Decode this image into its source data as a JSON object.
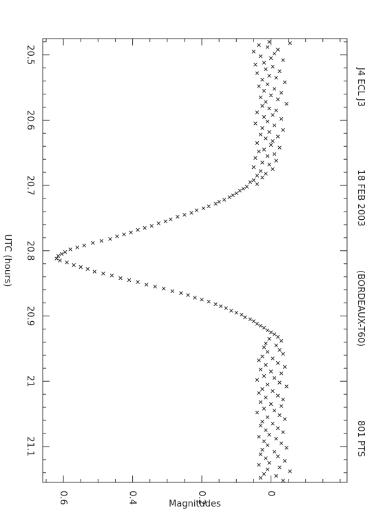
{
  "header": {
    "items": [
      "J4 ECL J3",
      "18 FEB 2003",
      "(BORDEAUX-T60)",
      "801 PTS"
    ]
  },
  "chart_data": {
    "type": "scatter",
    "title": "",
    "xlabel": "UTC (hours)",
    "ylabel": "Magnitudes",
    "xlim": [
      20.475,
      21.155
    ],
    "ylim": [
      -0.22,
      0.66
    ],
    "x_ticks": [
      {
        "value": 20.5,
        "label": "20.5"
      },
      {
        "value": 20.6,
        "label": "20.6"
      },
      {
        "value": 20.7,
        "label": "20.7"
      },
      {
        "value": 20.8,
        "label": "20.8"
      },
      {
        "value": 20.9,
        "label": "20.9"
      },
      {
        "value": 21.0,
        "label": "21"
      },
      {
        "value": 21.1,
        "label": "21.1"
      }
    ],
    "y_ticks": [
      {
        "value": 0,
        "label": "0"
      },
      {
        "value": 0.2,
        "label": "0.2"
      },
      {
        "value": 0.4,
        "label": "0.4"
      },
      {
        "value": 0.6,
        "label": "0.6"
      }
    ],
    "marker": "x",
    "marker_color": "#111111",
    "grid": false,
    "series": [
      {
        "points": [
          [
            20.48,
            0.005
          ],
          [
            20.482,
            -0.055
          ],
          [
            20.485,
            0.035
          ],
          [
            20.488,
            0.01
          ],
          [
            20.492,
            -0.02
          ],
          [
            20.495,
            0.05
          ],
          [
            20.498,
            -0.01
          ],
          [
            20.502,
            0.03
          ],
          [
            20.505,
            0.0
          ],
          [
            20.508,
            -0.035
          ],
          [
            20.512,
            0.02
          ],
          [
            20.515,
            0.045
          ],
          [
            20.518,
            -0.005
          ],
          [
            20.522,
            0.015
          ],
          [
            20.525,
            -0.025
          ],
          [
            20.528,
            0.04
          ],
          [
            20.532,
            0.005
          ],
          [
            20.535,
            -0.015
          ],
          [
            20.538,
            0.025
          ],
          [
            20.542,
            -0.04
          ],
          [
            20.545,
            0.01
          ],
          [
            20.548,
            0.035
          ],
          [
            20.552,
            -0.01
          ],
          [
            20.555,
            0.02
          ],
          [
            20.558,
            -0.03
          ],
          [
            20.562,
            0.0
          ],
          [
            20.565,
            0.03
          ],
          [
            20.568,
            -0.02
          ],
          [
            20.572,
            0.015
          ],
          [
            20.575,
            -0.045
          ],
          [
            20.578,
            0.025
          ],
          [
            20.582,
            0.005
          ],
          [
            20.585,
            -0.015
          ],
          [
            20.588,
            0.04
          ],
          [
            20.592,
            -0.005
          ],
          [
            20.595,
            0.02
          ],
          [
            20.598,
            -0.03
          ],
          [
            20.602,
            0.01
          ],
          [
            20.605,
            0.045
          ],
          [
            20.608,
            -0.01
          ],
          [
            20.612,
            0.025
          ],
          [
            20.615,
            -0.035
          ],
          [
            20.618,
            0.005
          ],
          [
            20.622,
            0.03
          ],
          [
            20.625,
            -0.02
          ],
          [
            20.628,
            0.015
          ],
          [
            20.632,
            -0.005
          ],
          [
            20.635,
            0.04
          ],
          [
            20.638,
            0.0
          ],
          [
            20.642,
            -0.025
          ],
          [
            20.645,
            0.02
          ],
          [
            20.648,
            0.035
          ],
          [
            20.652,
            -0.01
          ],
          [
            20.655,
            0.01
          ],
          [
            20.658,
            0.045
          ],
          [
            20.662,
            -0.015
          ],
          [
            20.665,
            0.025
          ],
          [
            20.668,
            0.005
          ],
          [
            20.672,
            0.05
          ],
          [
            20.675,
            -0.005
          ],
          [
            20.678,
            0.03
          ],
          [
            20.682,
            0.015
          ],
          [
            20.685,
            0.04
          ],
          [
            20.688,
            0.025
          ],
          [
            20.692,
            0.05
          ],
          [
            20.695,
            0.06
          ],
          [
            20.698,
            0.04
          ],
          [
            20.702,
            0.07
          ],
          [
            20.705,
            0.08
          ],
          [
            20.708,
            0.09
          ],
          [
            20.712,
            0.1
          ],
          [
            20.715,
            0.11
          ],
          [
            20.718,
            0.12
          ],
          [
            20.722,
            0.135
          ],
          [
            20.725,
            0.15
          ],
          [
            20.728,
            0.16
          ],
          [
            20.732,
            0.18
          ],
          [
            20.735,
            0.195
          ],
          [
            20.738,
            0.215
          ],
          [
            20.742,
            0.23
          ],
          [
            20.745,
            0.25
          ],
          [
            20.748,
            0.27
          ],
          [
            20.752,
            0.29
          ],
          [
            20.755,
            0.305
          ],
          [
            20.758,
            0.325
          ],
          [
            20.762,
            0.345
          ],
          [
            20.765,
            0.365
          ],
          [
            20.768,
            0.385
          ],
          [
            20.772,
            0.405
          ],
          [
            20.775,
            0.425
          ],
          [
            20.778,
            0.445
          ],
          [
            20.782,
            0.465
          ],
          [
            20.785,
            0.49
          ],
          [
            20.788,
            0.515
          ],
          [
            20.792,
            0.54
          ],
          [
            20.795,
            0.56
          ],
          [
            20.798,
            0.58
          ],
          [
            20.802,
            0.595
          ],
          [
            20.805,
            0.605
          ],
          [
            20.808,
            0.615
          ],
          [
            20.812,
            0.62
          ],
          [
            20.815,
            0.61
          ],
          [
            20.818,
            0.59
          ],
          [
            20.822,
            0.57
          ],
          [
            20.825,
            0.55
          ],
          [
            20.828,
            0.53
          ],
          [
            20.832,
            0.51
          ],
          [
            20.835,
            0.485
          ],
          [
            20.838,
            0.46
          ],
          [
            20.842,
            0.435
          ],
          [
            20.845,
            0.41
          ],
          [
            20.848,
            0.385
          ],
          [
            20.852,
            0.36
          ],
          [
            20.855,
            0.335
          ],
          [
            20.858,
            0.31
          ],
          [
            20.862,
            0.285
          ],
          [
            20.865,
            0.26
          ],
          [
            20.868,
            0.24
          ],
          [
            20.872,
            0.22
          ],
          [
            20.875,
            0.2
          ],
          [
            20.878,
            0.18
          ],
          [
            20.882,
            0.16
          ],
          [
            20.885,
            0.145
          ],
          [
            20.888,
            0.13
          ],
          [
            20.892,
            0.115
          ],
          [
            20.895,
            0.1
          ],
          [
            20.898,
            0.085
          ],
          [
            20.902,
            0.075
          ],
          [
            20.905,
            0.06
          ],
          [
            20.908,
            0.05
          ],
          [
            20.912,
            0.04
          ],
          [
            20.915,
            0.03
          ],
          [
            20.918,
            0.02
          ],
          [
            20.922,
            0.01
          ],
          [
            20.925,
            0.0
          ],
          [
            20.928,
            -0.01
          ],
          [
            20.932,
            -0.02
          ],
          [
            20.935,
            0.005
          ],
          [
            20.938,
            -0.03
          ],
          [
            20.942,
            0.015
          ],
          [
            20.945,
            -0.015
          ],
          [
            20.948,
            0.02
          ],
          [
            20.952,
            -0.025
          ],
          [
            20.955,
            0.01
          ],
          [
            20.958,
            -0.035
          ],
          [
            20.962,
            0.025
          ],
          [
            20.965,
            -0.005
          ],
          [
            20.968,
            0.035
          ],
          [
            20.972,
            -0.02
          ],
          [
            20.975,
            0.015
          ],
          [
            20.978,
            -0.04
          ],
          [
            20.982,
            0.03
          ],
          [
            20.985,
            0.0
          ],
          [
            20.988,
            -0.03
          ],
          [
            20.992,
            0.02
          ],
          [
            20.995,
            -0.01
          ],
          [
            20.998,
            0.04
          ],
          [
            21.002,
            -0.025
          ],
          [
            21.005,
            0.01
          ],
          [
            21.008,
            -0.045
          ],
          [
            21.012,
            0.025
          ],
          [
            21.015,
            -0.005
          ],
          [
            21.018,
            0.035
          ],
          [
            21.022,
            -0.02
          ],
          [
            21.025,
            0.015
          ],
          [
            21.028,
            -0.035
          ],
          [
            21.032,
            0.03
          ],
          [
            21.035,
            0.0
          ],
          [
            21.038,
            -0.03
          ],
          [
            21.042,
            0.02
          ],
          [
            21.045,
            -0.01
          ],
          [
            21.048,
            0.04
          ],
          [
            21.052,
            -0.025
          ],
          [
            21.055,
            0.01
          ],
          [
            21.058,
            -0.04
          ],
          [
            21.062,
            0.025
          ],
          [
            21.065,
            -0.005
          ],
          [
            21.068,
            0.03
          ],
          [
            21.072,
            -0.02
          ],
          [
            21.075,
            0.015
          ],
          [
            21.078,
            -0.035
          ],
          [
            21.082,
            0.005
          ],
          [
            21.085,
            0.035
          ],
          [
            21.088,
            -0.015
          ],
          [
            21.092,
            0.02
          ],
          [
            21.095,
            -0.03
          ],
          [
            21.098,
            0.01
          ],
          [
            21.102,
            -0.045
          ],
          [
            21.105,
            0.025
          ],
          [
            21.108,
            -0.01
          ],
          [
            21.112,
            0.03
          ],
          [
            21.115,
            -0.02
          ],
          [
            21.118,
            0.015
          ],
          [
            21.122,
            -0.04
          ],
          [
            21.125,
            0.005
          ],
          [
            21.128,
            0.035
          ],
          [
            21.132,
            -0.025
          ],
          [
            21.135,
            0.01
          ],
          [
            21.138,
            -0.055
          ],
          [
            21.142,
            0.02
          ],
          [
            21.145,
            -0.015
          ],
          [
            21.148,
            0.03
          ],
          [
            21.152,
            -0.035
          ]
        ]
      }
    ]
  }
}
